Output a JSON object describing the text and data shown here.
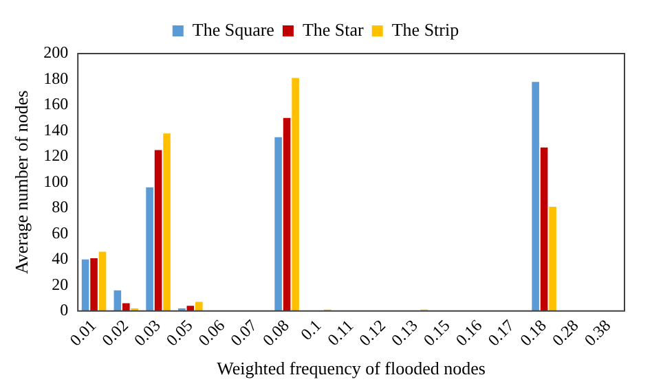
{
  "chart_data": {
    "type": "bar",
    "xlabel": "Weighted frequency of flooded nodes",
    "ylabel": "Average number of nodes",
    "categories": [
      "0.01",
      "0.02",
      "0.03",
      "0.05",
      "0.06",
      "0.07",
      "0.08",
      "0.1",
      "0.11",
      "0.12",
      "0.13",
      "0.15",
      "0.16",
      "0.17",
      "0.18",
      "0.28",
      "0.38"
    ],
    "series": [
      {
        "name": "The Square",
        "color": "#5b9bd5",
        "values": [
          40,
          16,
          96,
          2,
          0,
          0,
          135,
          0,
          0,
          0,
          0,
          0,
          0,
          0,
          178,
          0,
          0
        ]
      },
      {
        "name": "The Star",
        "color": "#c00000",
        "values": [
          41,
          6,
          125,
          4,
          0,
          0,
          150,
          0,
          0,
          0,
          0,
          0,
          0,
          0,
          127,
          0,
          0
        ]
      },
      {
        "name": "The Strip",
        "color": "#ffc000",
        "values": [
          46,
          2,
          138,
          7,
          0,
          0,
          181,
          1,
          0,
          0,
          1,
          0,
          0,
          0,
          81,
          0,
          0
        ]
      }
    ],
    "ylim": [
      0,
      200
    ],
    "yticks": [
      0,
      20,
      40,
      60,
      80,
      100,
      120,
      140,
      160,
      180,
      200
    ],
    "grid": false,
    "legend": "top"
  }
}
